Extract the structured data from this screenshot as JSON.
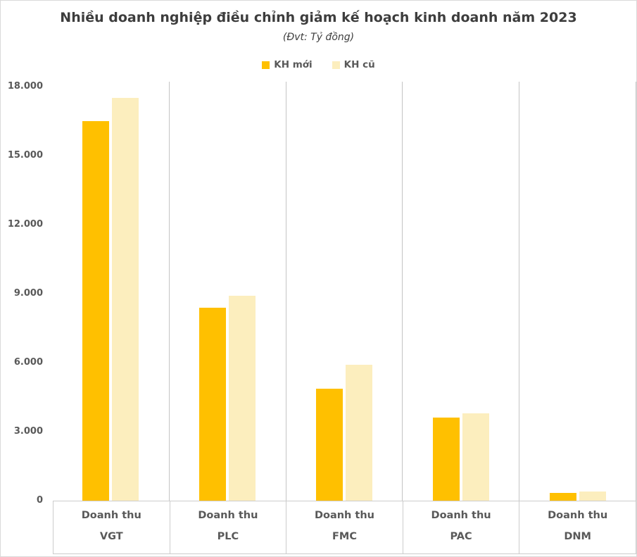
{
  "title": "Nhiều doanh nghiệp điều chỉnh giảm kế hoạch kinh doanh năm 2023",
  "subtitle": "(Đvt: Tỷ đồng)",
  "colors": {
    "new_plan": "#FFC000",
    "old_plan": "#FCEEBE",
    "text_gray": "#595959",
    "title_gray": "#3d3d3d",
    "grid_line": "#c4c4c4"
  },
  "chart_data": {
    "type": "bar",
    "title": "Nhiều doanh nghiệp điều chỉnh giảm kế hoạch kinh doanh năm 2023",
    "subtitle": "(Đvt: Tỷ đồng)",
    "unit": "Tỷ đồng",
    "legend_position": "top",
    "grid": "vertical-category-dividers-only",
    "ylim": [
      0,
      18000
    ],
    "yticks": [
      {
        "value": 0,
        "label": "0"
      },
      {
        "value": 3000,
        "label": "3.000"
      },
      {
        "value": 6000,
        "label": "6.000"
      },
      {
        "value": 9000,
        "label": "9.000"
      },
      {
        "value": 12000,
        "label": "12.000"
      },
      {
        "value": 15000,
        "label": "15.000"
      },
      {
        "value": 18000,
        "label": "18.000"
      }
    ],
    "categories": [
      {
        "id": "VGT",
        "label_line1": "Doanh thu",
        "label_line2": "VGT"
      },
      {
        "id": "PLC",
        "label_line1": "Doanh thu",
        "label_line2": "PLC"
      },
      {
        "id": "FMC",
        "label_line1": "Doanh thu",
        "label_line2": "FMC"
      },
      {
        "id": "PAC",
        "label_line1": "Doanh thu",
        "label_line2": "PAC"
      },
      {
        "id": "DNM",
        "label_line1": "Doanh thu",
        "label_line2": "DNM"
      }
    ],
    "series": [
      {
        "name": "KH mới",
        "color": "#FFC000",
        "values": [
          16500,
          8400,
          4870,
          3600,
          330
        ]
      },
      {
        "name": "KH cũ",
        "color": "#FCEEBE",
        "values": [
          17500,
          8900,
          5900,
          3800,
          390
        ]
      }
    ]
  }
}
